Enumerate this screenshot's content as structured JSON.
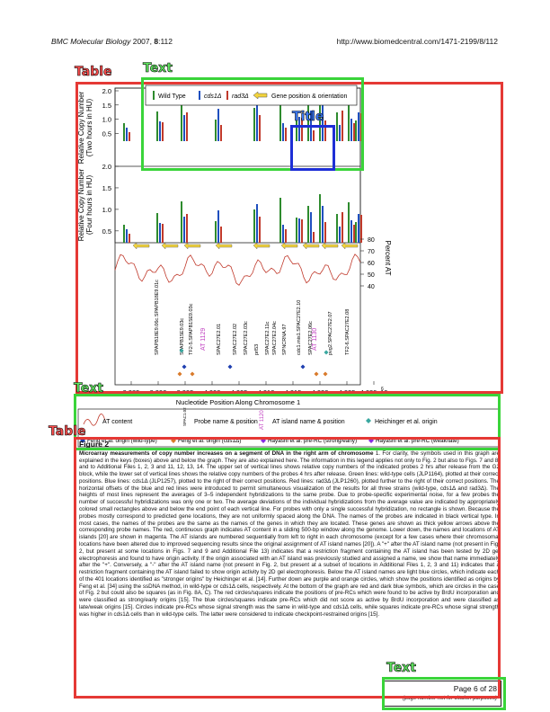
{
  "header": {
    "journal": "BMC Molecular Biology",
    "year_volume": "2007, ",
    "volume_bold": "8",
    "pages": ":112",
    "url": "http://www.biomedcentral.com/1471-2199/8/112"
  },
  "annotations": {
    "table1": "Table",
    "text1": "Text",
    "title1": "Title",
    "text2": "Text",
    "table2": "Table",
    "text3": "Text"
  },
  "figure": {
    "legend_top": {
      "wild_type": "Wild Type",
      "cds1": "cds1Δ",
      "rad3": "rad3Δ",
      "gene_pos": "Gene position & orientation"
    },
    "panel1_ylabel1": "Relative Copy Number",
    "panel1_ylabel2": "(Two hours in HU)",
    "panel2_ylabel1": "Relative Copy Number",
    "panel2_ylabel2": "(Four hours in HU)",
    "panel_yticks": [
      "2.0",
      "1.5",
      "1.0",
      "0.5"
    ],
    "at_ticks": [
      "80",
      "70",
      "60",
      "50",
      "40"
    ],
    "at_label": "Percent AT",
    "gene_labels": [
      "SPAPB18E9.06c.SPAPB18E9.01c",
      "SPAPB15E9.03c",
      "TF2-5.SPAPB15E9.03c",
      "SPAC27E2.01",
      "SPAC27E2.02",
      "SPAC27E2.03c",
      "prl53",
      "SPAC27E2.11c",
      "SPAC27E2.04c",
      "SPNCRNA.97",
      "cdc1.mis1.SPAC27E2.10",
      "SPAC27E2.06c",
      "pvg2.SPAC27E2.07",
      "TF2-6.SPAC27E2.08"
    ],
    "at_island_labels": [
      "AT 1129",
      "AT 1130"
    ],
    "x_ticks": [
      "3.985",
      "3.990",
      "3.995",
      "4.000",
      "4.005",
      "4.010",
      "4.015",
      "4.020",
      "4.025",
      "4.030x10"
    ],
    "x_exp": "6",
    "xlabel": "Nucleotide Position Along Chromosome 1",
    "legend_bottom": {
      "at_content": "AT content",
      "probe_name_sample": "SPAC1.02",
      "probe_name": "Probe name & position",
      "at_island_sample": "AT 1120",
      "at_island": "AT island name & position",
      "heichinger": "Heichinger et al. origin",
      "feng_wt": "Feng et al. origin (wild-type)",
      "feng_cds1": "Feng et al. origin (cds1Δ)",
      "hayashi_strong": "Hayashi et al. pre-RC (strong/early)",
      "hayashi_weak": "Hayashi et al. pre-RC (weak/late)"
    },
    "colors": {
      "wild_type": "#2e8b2e",
      "cds1": "#1f4fbf",
      "rad3": "#c0392b",
      "gene": "#f2d33c",
      "at_line": "#c0392b",
      "heichinger": "#3aa8a0",
      "feng_wt": "#1f3fb0",
      "feng_cds1": "#d97a2a",
      "hayashi": "#8a2be2"
    }
  },
  "caption": {
    "figure_label": "Figure 2",
    "lead": "Microarray measurements of copy number increases on a segment of DNA in the right arm of chromosome",
    "body": "1. For clarity, the symbols used in this graph are explained in the keys (boxes) above and below the graph. They are also explained here. The information in this legend applies not only to Fig. 2 but also to Figs. 7 and 8, and to Additional Files 1, 2, 3 and 11, 12, 13, 14. The upper set of vertical lines shows relative copy numbers of the indicated probes 2 hrs after release from the G2 block, while the lower set of vertical lines shows the relative copy numbers of the probes 4 hrs after release. Green lines: wild-type cells (JLP1164), plotted at their correct positions. Blue lines: cds1Δ (JLP1257), plotted to the right of their correct positions. Red lines: rad3Δ (JLP1260), plotted further to the right of their correct positions. The horizontal offsets of the blue and red lines were introduced to permit simultaneous visualization of the results for all three strains (wild-type, cds1Δ and rad3Δ). The heights of most lines represent the averages of 3–5 independent hybridizations to the same probe. Due to probe-specific experimental noise, for a few probes the number of successful hybridizations was only one or two. The average deviations of the individual hybridizations from the average value are indicated by appropriately colored small rectangles above and below the end point of each vertical line. For probes with only a single successful hybridization, no rectangle is shown. Because the probes mostly correspond to predicted gene locations, they are not uniformly spaced along the DNA. The names of the probes are indicated in black vertical type. In most cases, the names of the probes are the same as the names of the genes in which they are located. These genes are shown as thick yellow arrows above the corresponding probe names. The red, continuous graph indicates AT content in a sliding 500-bp window along the genome. Lower down, the names and locations of AT islands [20] are shown in magenta. The AT islands are numbered sequentially from left to right in each chromosome (except for a few cases where their chromosomal locations have been altered due to improved sequencing results since the original assignment of AT island names [20]). A \"+\" after the AT island name (not present in Fig. 2, but present at some locations in Figs. 7 and 9 and Additional File 13) indicates that a restriction fragment containing the AT island has been tested by 2D gel electrophoresis and found to have origin activity. If the origin associated with an AT island was previously studied and assigned a name, we show that name immediately after the \"+\". Conversely, a \"-\" after the AT island name (not present in Fig. 2, but present at a subset of locations in Additional Files 1, 2, 3 and 11) indicates that a restriction fragment containing the AT island failed to show origin activity by 2D gel electrophoresis. Below the AT island names are light blue circles, which indicate each of the 401 locations identified as \"stronger origins\" by Heichinger et al. [14]. Further down are purple and orange circles, which show the positions identified as origins by Feng et al. [34] using the ssDNA method, in wild-type or cds1Δ cells, respectively. At the bottom of the graph are red and dark blue symbols, which are circles in the case of Fig. 2 but could also be squares (as in Fig. 8A, C). The red circles/squares indicate the positions of pre-RCs which were found to be active by BrdU incorporation and were classified as strong/early origins [15]. The blue circles/squares indicate pre-RCs which did not score as active by BrdU incorporation and were classified as late/weak origins [15]. Circles indicate pre-RCs whose signal strength was the same in wild-type and cds1Δ cells, while squares indicate pre-RCs whose signal strength was higher in cds1Δ cells than in wild-type cells. The latter were considered to indicate checkpoint-restrained origins [15]."
  },
  "footer": {
    "page": "Page 6 of 28",
    "note": "(page number not for citation purposes)"
  }
}
